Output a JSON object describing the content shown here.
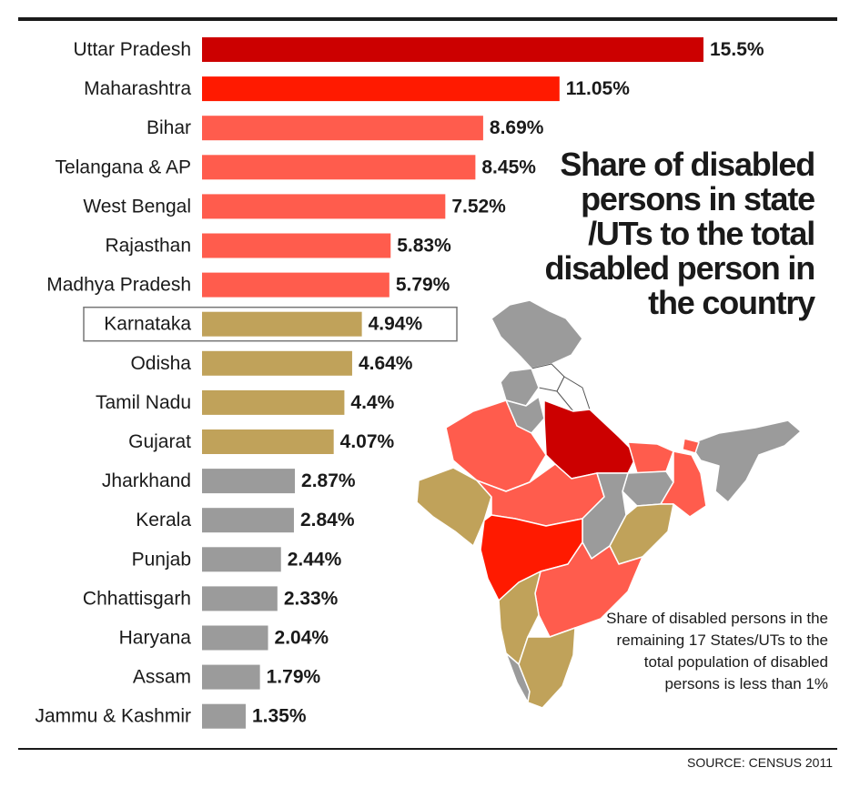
{
  "chart_data": {
    "type": "bar",
    "orientation": "horizontal",
    "title": "Share of disabled persons in state /UTs to the total disabled person in the country",
    "categories": [
      "Uttar Pradesh",
      "Maharashtra",
      "Bihar",
      "Telangana & AP",
      "West Bengal",
      "Rajasthan",
      "Madhya Pradesh",
      "Karnataka",
      "Odisha",
      "Tamil Nadu",
      "Gujarat",
      "Jharkhand",
      "Kerala",
      "Punjab",
      "Chhattisgarh",
      "Haryana",
      "Assam",
      "Jammu & Kashmir"
    ],
    "values": [
      15.5,
      11.05,
      8.69,
      8.45,
      7.52,
      5.83,
      5.79,
      4.94,
      4.64,
      4.4,
      4.07,
      2.87,
      2.84,
      2.44,
      2.33,
      2.04,
      1.79,
      1.35
    ],
    "value_labels": [
      "15.5%",
      "11.05%",
      "8.69%",
      "8.45%",
      "7.52%",
      "5.83%",
      "5.79%",
      "4.94%",
      "4.64%",
      "4.4%",
      "4.07%",
      "2.87%",
      "2.84%",
      "2.44%",
      "2.33%",
      "2.04%",
      "1.79%",
      "1.35%"
    ],
    "colors": [
      "#cc0000",
      "#ff1a00",
      "#ff5c4d",
      "#ff5c4d",
      "#ff5c4d",
      "#ff5c4d",
      "#ff5c4d",
      "#c0a25a",
      "#c0a25a",
      "#c0a25a",
      "#c0a25a",
      "#9b9b9b",
      "#9b9b9b",
      "#9b9b9b",
      "#9b9b9b",
      "#9b9b9b",
      "#9b9b9b",
      "#9b9b9b"
    ],
    "highlighted": "Karnataka",
    "xlim": [
      0,
      15.5
    ],
    "grid": false,
    "legend": "none"
  },
  "note": "Share of disabled persons in the remaining 17 States/UTs to the total population of disabled persons is less than 1%",
  "source": "SOURCE: CENSUS 2011"
}
